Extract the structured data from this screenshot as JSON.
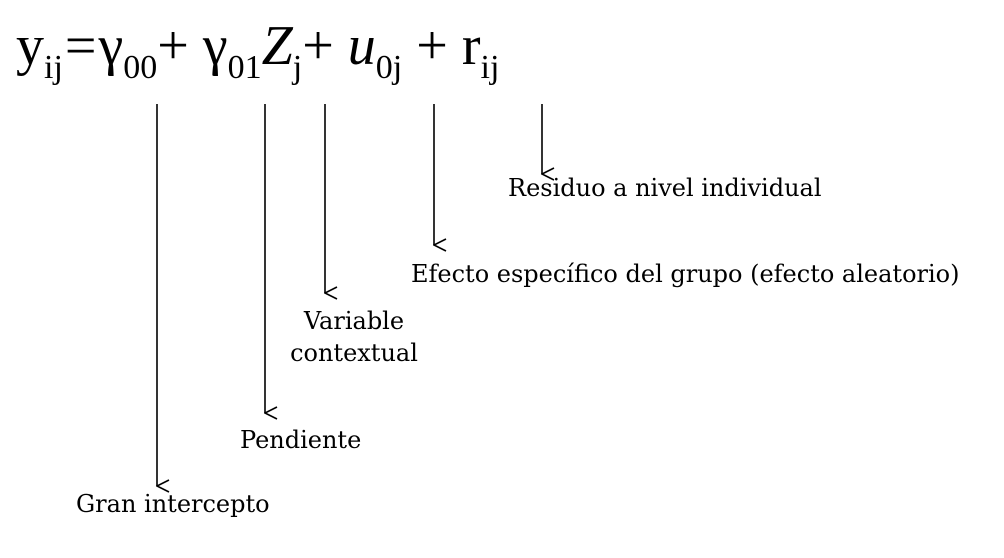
{
  "equation": {
    "y": "y",
    "y_sub": "ij",
    "equals": "=",
    "gamma00": "γ",
    "gamma00_sub": "00",
    "plus1": "+",
    "gamma01": "γ",
    "gamma01_sub": "01",
    "Z": "Z",
    "Z_sub": "j",
    "plus2": "+",
    "u": "u",
    "u_sub": "0j",
    "plus3": "+",
    "r": "r",
    "r_sub": "ij"
  },
  "labels": {
    "residual": "Residuo a nivel individual",
    "group_effect": "Efecto específico del grupo (efecto aleatorio)",
    "contextual_line1": "Variable",
    "contextual_line2": "contextual",
    "slope": "Pendiente",
    "intercept": "Gran intercepto"
  },
  "colors": {
    "ink": "#000000",
    "background": "#ffffff"
  }
}
